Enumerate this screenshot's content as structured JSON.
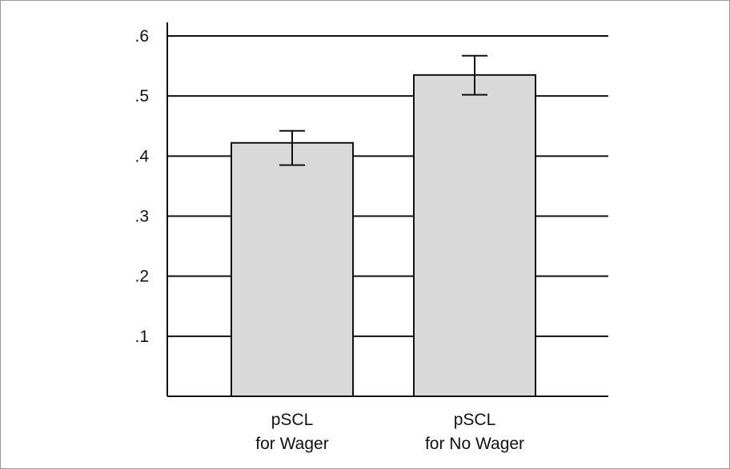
{
  "chart_data": {
    "type": "bar",
    "title": "",
    "xlabel": "",
    "ylabel": "",
    "ylim": [
      0,
      0.6
    ],
    "yticks": [
      {
        "value": 0.1,
        "label": ".1"
      },
      {
        "value": 0.2,
        "label": ".2"
      },
      {
        "value": 0.3,
        "label": ".3"
      },
      {
        "value": 0.4,
        "label": ".4"
      },
      {
        "value": 0.5,
        "label": ".5"
      },
      {
        "value": 0.6,
        "label": ".6"
      }
    ],
    "grid": true,
    "categories": [
      {
        "line1": "pSCL",
        "line2": "for Wager"
      },
      {
        "line1": "pSCL",
        "line2": "for No Wager"
      }
    ],
    "values": [
      0.422,
      0.535
    ],
    "error_bars": [
      {
        "low": 0.385,
        "high": 0.442
      },
      {
        "low": 0.502,
        "high": 0.567
      }
    ],
    "colors": {
      "bar_fill": "#d9d9d9",
      "bar_stroke": "#111111",
      "grid": "#111111",
      "axis": "#111111"
    }
  }
}
